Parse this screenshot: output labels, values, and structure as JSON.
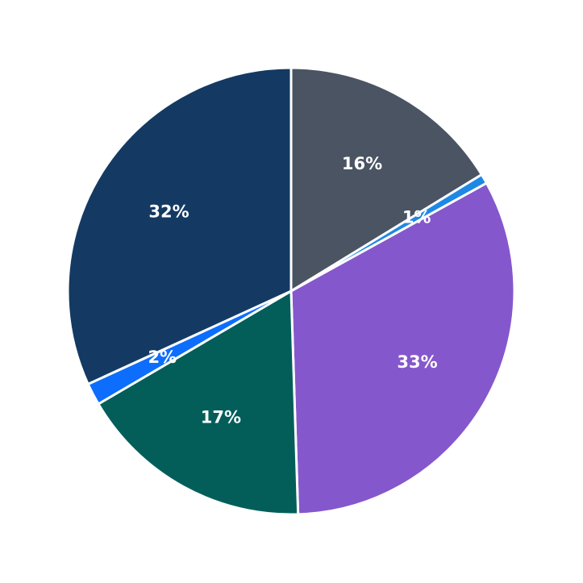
{
  "chart_data": {
    "type": "pie",
    "values": [
      16.3,
      0.7,
      32.6,
      17.1,
      1.6,
      31.9
    ],
    "value_labels": [
      "16%",
      "1%",
      "33%",
      "17%",
      "2%",
      "32%"
    ],
    "colors": [
      "#4a5462",
      "#1e88e5",
      "#8557cc",
      "#035e5a",
      "#0d6efd",
      "#143a63"
    ],
    "start_angle": 0,
    "direction": "clockwise"
  }
}
